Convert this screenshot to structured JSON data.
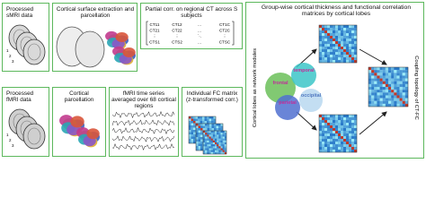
{
  "panels": [
    {
      "label": "Processed sMRI data"
    },
    {
      "label": "Cortical surface extraction and parcellation"
    },
    {
      "label": "Partial corr. on regional CT across S subjects"
    },
    {
      "label": "Processed fMRI data"
    },
    {
      "label": "Cortical parcellation"
    },
    {
      "label": "fMRI time series averaged over 68 cortical regions"
    },
    {
      "label": "Individual FC matrix (z-transformed corr.)"
    },
    {
      "label": "Group-wise cortical thickness and functional correlation matrices by cortical lobes"
    }
  ],
  "stack_labels": [
    "1",
    "2",
    "3"
  ],
  "matrix_rows": [
    [
      "CT11",
      "CT12",
      "...",
      "CT1C"
    ],
    [
      "CT21",
      "CT22",
      "...",
      "CT2C"
    ],
    [
      "⋮",
      "⋮",
      "⋱",
      "⋮"
    ],
    [
      "CTS1",
      "CTS2",
      "...",
      "CTSC"
    ]
  ],
  "lobes": [
    "frontal",
    "temporal",
    "parietal",
    "occipital"
  ],
  "left_side_label": "Cortical lobes as network modules",
  "right_side_label": "Coupling topology of CT-FC"
}
